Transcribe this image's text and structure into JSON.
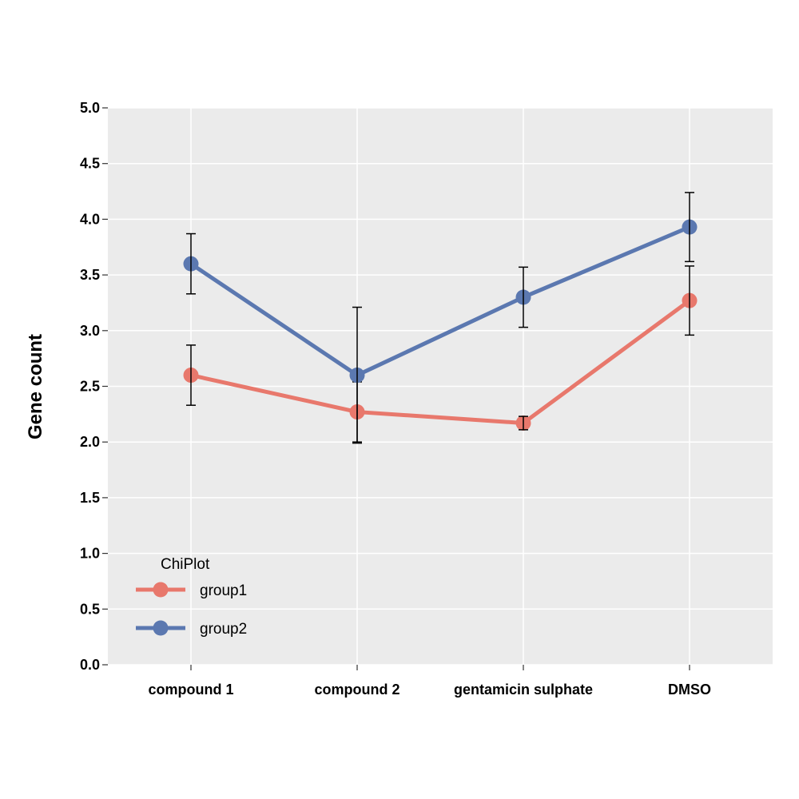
{
  "chart_data": {
    "type": "line",
    "title": "",
    "xlabel": "",
    "ylabel": "Gene count",
    "categories": [
      "compound 1",
      "compound 2",
      "gentamicin sulphate",
      "DMSO"
    ],
    "ylim": [
      0,
      5
    ],
    "yticks": [
      "0.0",
      "0.5",
      "1.0",
      "1.5",
      "2.0",
      "2.5",
      "3.0",
      "3.5",
      "4.0",
      "4.5",
      "5.0"
    ],
    "grid": true,
    "legend": {
      "title": "ChiPlot",
      "position": "bottom-left"
    },
    "series": [
      {
        "name": "group1",
        "color": "#e8786c",
        "values": [
          2.6,
          2.27,
          2.17,
          3.27
        ],
        "error": [
          0.27,
          0.27,
          0.06,
          0.31
        ]
      },
      {
        "name": "group2",
        "color": "#5b78b0",
        "values": [
          3.6,
          2.6,
          3.3,
          3.93
        ],
        "error": [
          0.27,
          0.61,
          0.27,
          0.31
        ]
      }
    ]
  }
}
